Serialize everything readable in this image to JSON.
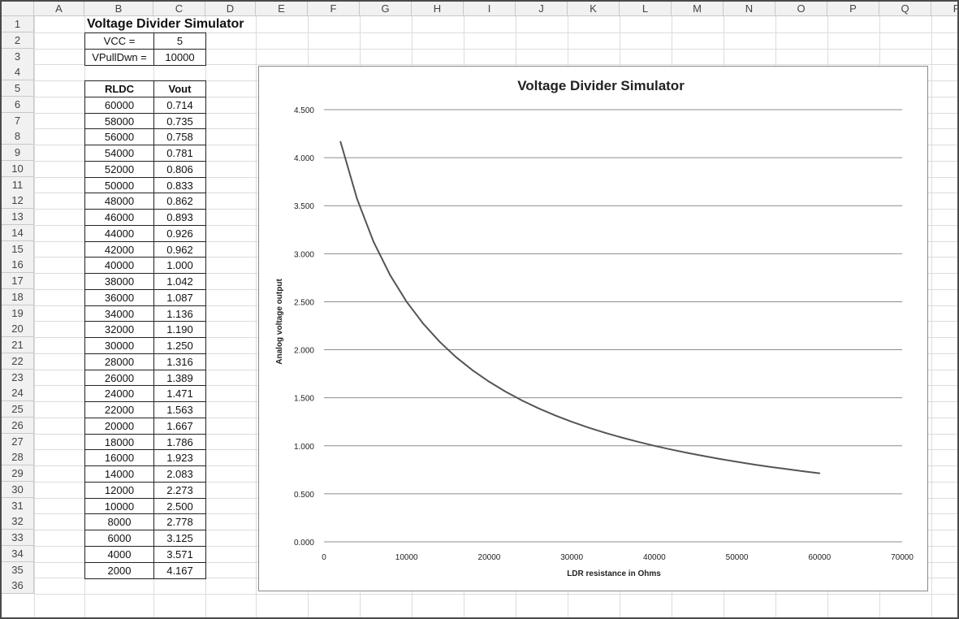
{
  "spreadsheet": {
    "columns": [
      "A",
      "B",
      "C",
      "D",
      "E",
      "F",
      "G",
      "H",
      "I",
      "J",
      "K",
      "L",
      "M",
      "N",
      "O",
      "P",
      "Q",
      "R"
    ],
    "rows": [
      "1",
      "2",
      "3",
      "4",
      "5",
      "6",
      "7",
      "8",
      "9",
      "10",
      "11",
      "12",
      "13",
      "14",
      "15",
      "16",
      "17",
      "18",
      "19",
      "20",
      "21",
      "22",
      "23",
      "24",
      "25",
      "26",
      "27",
      "28",
      "29",
      "30",
      "31",
      "32",
      "33",
      "34",
      "35",
      "36"
    ],
    "title": "Voltage Divider Simulator",
    "vcc_label": "VCC =",
    "vcc_value": "5",
    "pulldown_label": "VPullDwn =",
    "pulldown_value": "10000",
    "table_headers": [
      "RLDC",
      "Vout"
    ],
    "table_rows": [
      [
        "60000",
        "0.714"
      ],
      [
        "58000",
        "0.735"
      ],
      [
        "56000",
        "0.758"
      ],
      [
        "54000",
        "0.781"
      ],
      [
        "52000",
        "0.806"
      ],
      [
        "50000",
        "0.833"
      ],
      [
        "48000",
        "0.862"
      ],
      [
        "46000",
        "0.893"
      ],
      [
        "44000",
        "0.926"
      ],
      [
        "42000",
        "0.962"
      ],
      [
        "40000",
        "1.000"
      ],
      [
        "38000",
        "1.042"
      ],
      [
        "36000",
        "1.087"
      ],
      [
        "34000",
        "1.136"
      ],
      [
        "32000",
        "1.190"
      ],
      [
        "30000",
        "1.250"
      ],
      [
        "28000",
        "1.316"
      ],
      [
        "26000",
        "1.389"
      ],
      [
        "24000",
        "1.471"
      ],
      [
        "22000",
        "1.563"
      ],
      [
        "20000",
        "1.667"
      ],
      [
        "18000",
        "1.786"
      ],
      [
        "16000",
        "1.923"
      ],
      [
        "14000",
        "2.083"
      ],
      [
        "12000",
        "2.273"
      ],
      [
        "10000",
        "2.500"
      ],
      [
        "8000",
        "2.778"
      ],
      [
        "6000",
        "3.125"
      ],
      [
        "4000",
        "3.571"
      ],
      [
        "2000",
        "4.167"
      ]
    ]
  },
  "chart_data": {
    "type": "line",
    "title": "Voltage Divider Simulator",
    "xlabel": "LDR resistance in Ohms",
    "ylabel": "Analog voltage output",
    "xlim": [
      0,
      70000
    ],
    "ylim": [
      0,
      4.5
    ],
    "x_ticks": [
      0,
      10000,
      20000,
      30000,
      40000,
      50000,
      60000,
      70000
    ],
    "x_tick_labels": [
      "0",
      "10000",
      "20000",
      "30000",
      "40000",
      "50000",
      "60000",
      "70000"
    ],
    "y_ticks": [
      0,
      0.5,
      1,
      1.5,
      2,
      2.5,
      3,
      3.5,
      4,
      4.5
    ],
    "y_tick_labels": [
      "0.000",
      "0.500",
      "1.000",
      "1.500",
      "2.000",
      "2.500",
      "3.000",
      "3.500",
      "4.000",
      "4.500"
    ],
    "grid": "horizontal",
    "legend": "none",
    "line_color": "#555555",
    "series": [
      {
        "x": [
          60000,
          58000,
          56000,
          54000,
          52000,
          50000,
          48000,
          46000,
          44000,
          42000,
          40000,
          38000,
          36000,
          34000,
          32000,
          30000,
          28000,
          26000,
          24000,
          22000,
          20000,
          18000,
          16000,
          14000,
          12000,
          10000,
          8000,
          6000,
          4000,
          2000
        ],
        "values": [
          0.714,
          0.735,
          0.758,
          0.781,
          0.806,
          0.833,
          0.862,
          0.893,
          0.926,
          0.962,
          1.0,
          1.042,
          1.087,
          1.136,
          1.19,
          1.25,
          1.316,
          1.389,
          1.471,
          1.563,
          1.667,
          1.786,
          1.923,
          2.083,
          2.273,
          2.5,
          2.778,
          3.125,
          3.571,
          4.167
        ]
      }
    ]
  }
}
